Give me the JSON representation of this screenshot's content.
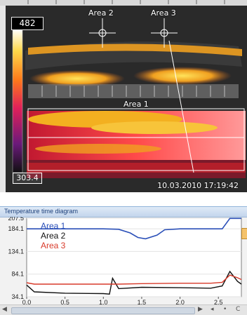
{
  "thermal": {
    "max_value": "482",
    "min_value": "303.4",
    "timestamp": "10.03.2010 17:19:42",
    "areas": [
      {
        "id": "area1",
        "label": "Area 1"
      },
      {
        "id": "area2",
        "label": "Area 2"
      },
      {
        "id": "area3",
        "label": "Area 3"
      }
    ]
  },
  "diagram": {
    "title": "Temperature time diagram",
    "y_ticks": [
      "207.5",
      "184.1",
      "134.1",
      "84.1",
      "34.1"
    ],
    "x_ticks": [
      "0,0",
      "0,5",
      "1,0",
      "1,5",
      "2,0",
      "2,5"
    ],
    "legend": [
      {
        "name": "Area 1",
        "color": "#2a4fb8"
      },
      {
        "name": "Area 2",
        "color": "#111111"
      },
      {
        "name": "Area 3",
        "color": "#d83a2a"
      }
    ],
    "scroll_glyphs": [
      "◀",
      "▶",
      "◂",
      "•",
      "C"
    ]
  },
  "chart_data": {
    "type": "line",
    "title": "Temperature time diagram",
    "ylim": [
      34.1,
      207.5
    ],
    "xlim": [
      0,
      2.8
    ],
    "series": [
      {
        "name": "Area 1",
        "color": "#2a4fb8",
        "x": [
          0.0,
          0.5,
          1.0,
          1.2,
          1.35,
          1.45,
          1.55,
          1.7,
          1.8,
          2.0,
          2.3,
          2.55,
          2.65,
          2.8
        ],
        "y": [
          184,
          184,
          184,
          183,
          175,
          165,
          162,
          170,
          182,
          184,
          184,
          184,
          207,
          207
        ]
      },
      {
        "name": "Area 2",
        "color": "#111111",
        "x": [
          0.0,
          0.1,
          0.5,
          1.0,
          1.08,
          1.12,
          1.2,
          1.5,
          2.0,
          2.4,
          2.55,
          2.65,
          2.75,
          2.8
        ],
        "y": [
          60,
          45,
          42,
          41,
          40,
          75,
          52,
          55,
          54,
          53,
          58,
          90,
          68,
          62
        ]
      },
      {
        "name": "Area 3",
        "color": "#d83a2a",
        "x": [
          0.0,
          0.1,
          0.5,
          1.0,
          1.08,
          1.12,
          1.2,
          1.5,
          2.0,
          2.4,
          2.55,
          2.65,
          2.75,
          2.8
        ],
        "y": [
          65,
          62,
          62,
          62,
          62,
          62,
          62,
          63,
          64,
          64,
          66,
          82,
          76,
          72
        ]
      }
    ]
  }
}
